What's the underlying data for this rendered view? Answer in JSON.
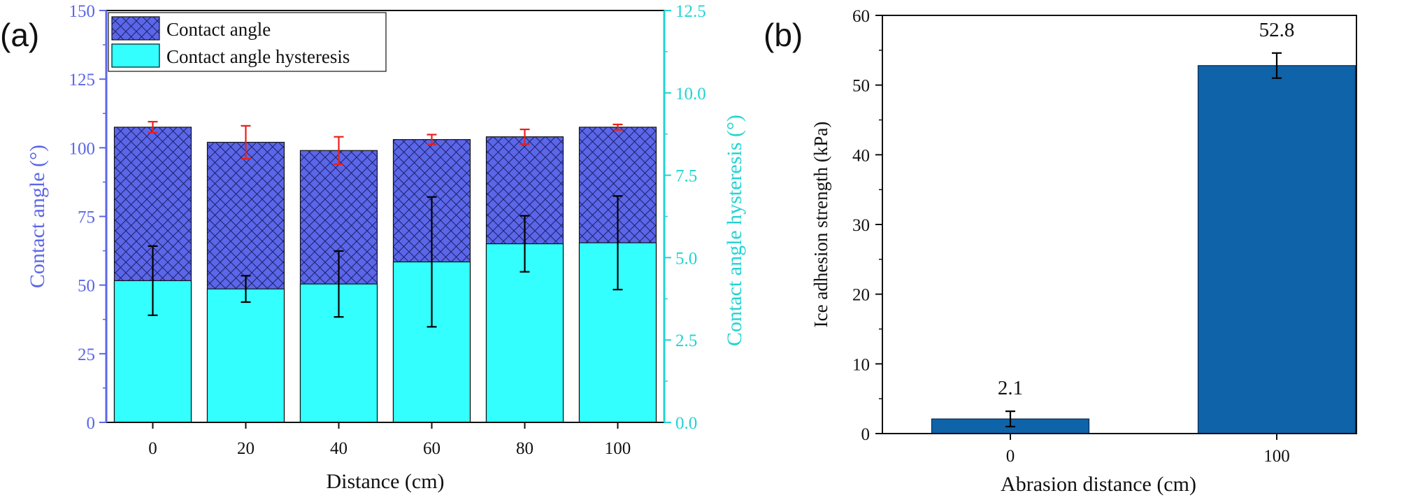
{
  "chart_data": [
    {
      "panel_label": "(a)",
      "type": "bar",
      "x_categories": [
        "0",
        "20",
        "40",
        "60",
        "80",
        "100"
      ],
      "xlabel": "Distance (cm)",
      "ylabel_left": "Contact angle (°)",
      "ylabel_right": "Contact angle hysteresis (°)",
      "ylim_left": [
        0,
        150
      ],
      "ylim_right": [
        0,
        12.5
      ],
      "yticks_left": [
        "0",
        "25",
        "50",
        "75",
        "100",
        "125",
        "150"
      ],
      "yticks_right": [
        "0.0",
        "2.5",
        "5.0",
        "7.5",
        "10.0",
        "12.5"
      ],
      "legend_position": "top-left",
      "series": [
        {
          "name": "Contact angle",
          "axis": "left",
          "values": [
            107.5,
            102,
            99,
            103,
            104,
            107.5
          ],
          "errors": [
            2,
            6,
            5,
            1.8,
            2.7,
            1
          ],
          "fill": "#5b66e8",
          "pattern": "crosshatch",
          "error_color": "#e8201a"
        },
        {
          "name": "Contact angle hysteresis",
          "axis": "right",
          "values": [
            4.3,
            4.05,
            4.2,
            4.87,
            5.42,
            5.45
          ],
          "errors": [
            1.05,
            0.4,
            1.0,
            1.97,
            0.85,
            1.42
          ],
          "fill": "#33ffff",
          "error_color": "#000000"
        }
      ],
      "colors": {
        "left_axis": "#5b66e8",
        "right_axis": "#22d3d3"
      }
    },
    {
      "panel_label": "(b)",
      "type": "bar",
      "categories": [
        "0",
        "100"
      ],
      "values": [
        2.1,
        52.8
      ],
      "errors": [
        1.1,
        1.8
      ],
      "data_labels": [
        "2.1",
        "52.8"
      ],
      "xlabel": "Abrasion distance (cm)",
      "ylabel": "Ice adhesion strength (kPa)",
      "ylim": [
        0,
        60
      ],
      "yticks": [
        "0",
        "10",
        "20",
        "30",
        "40",
        "50",
        "60"
      ],
      "bar_color": "#0f63a8"
    }
  ]
}
